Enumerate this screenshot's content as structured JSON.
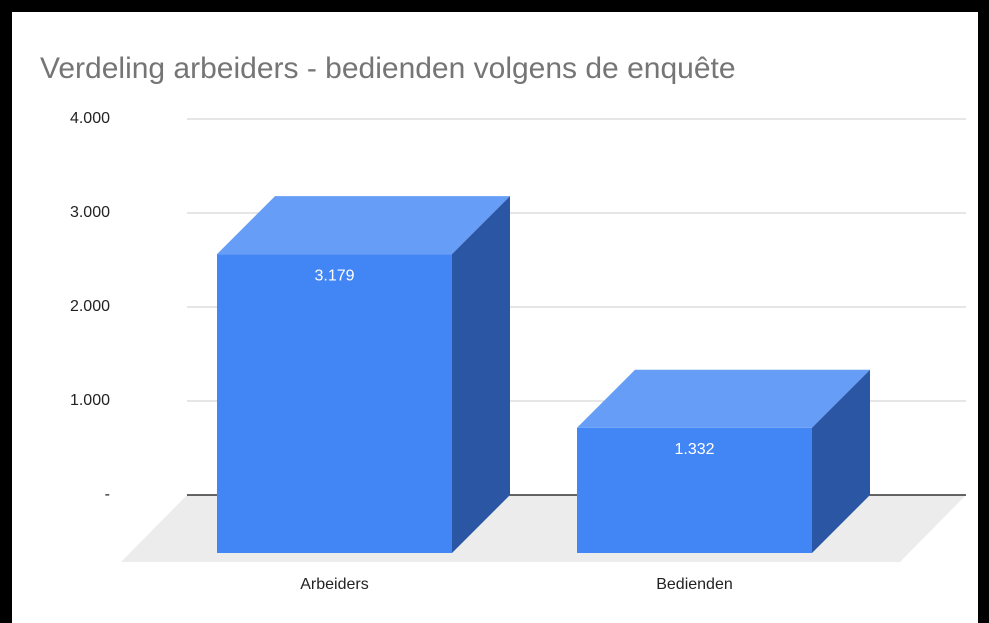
{
  "chart_data": {
    "type": "bar3d",
    "title": "Verdeling arbeiders - bedienden volgens de enquête",
    "categories": [
      "Arbeiders",
      "Bedienden"
    ],
    "values": [
      3179,
      1332
    ],
    "value_labels": [
      "3.179",
      "1.332"
    ],
    "color": "#4285f4",
    "ylim": [
      0,
      4000
    ],
    "yticks": [
      {
        "value": 0,
        "label": "-"
      },
      {
        "value": 1000,
        "label": "1.000"
      },
      {
        "value": 2000,
        "label": "2.000"
      },
      {
        "value": 3000,
        "label": "3.000"
      },
      {
        "value": 4000,
        "label": "4.000"
      }
    ],
    "grid": true
  }
}
